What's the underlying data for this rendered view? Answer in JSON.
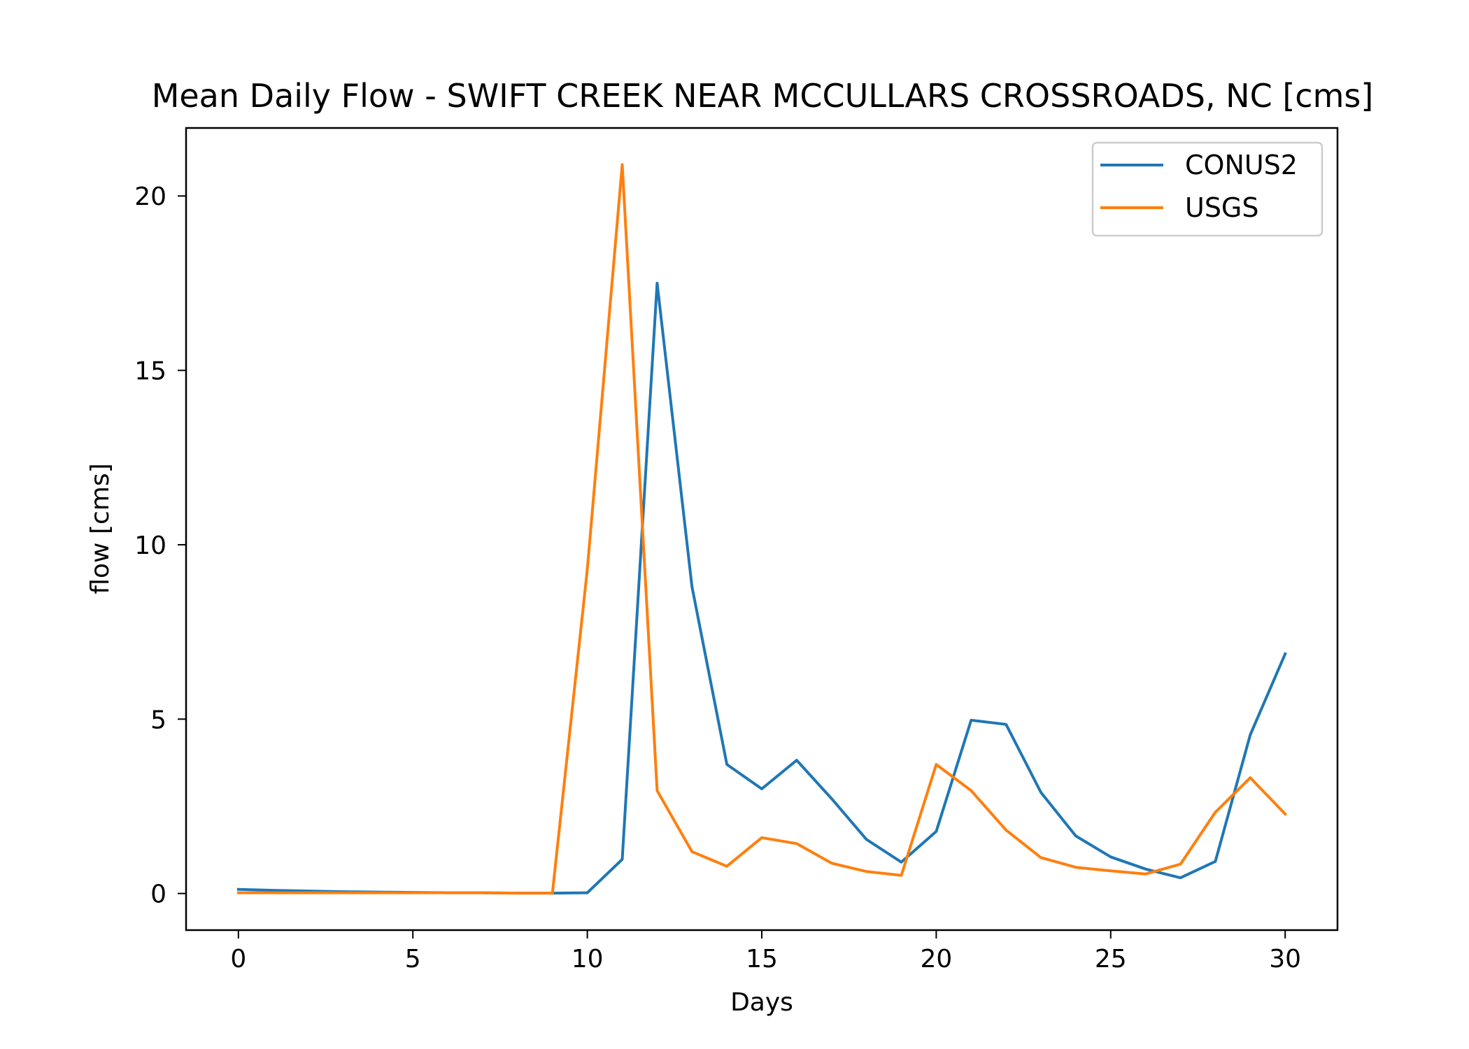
{
  "chart_data": {
    "type": "line",
    "title": "Mean Daily Flow - SWIFT CREEK NEAR MCCULLARS CROSSROADS, NC [cms]",
    "xlabel": "Days",
    "ylabel": "flow [cms]",
    "xlim": [
      -1.5,
      31.5
    ],
    "ylim": [
      -1.05,
      21.95
    ],
    "xticks": [
      0,
      5,
      10,
      15,
      20,
      25,
      30
    ],
    "yticks": [
      0,
      5,
      10,
      15,
      20
    ],
    "grid": false,
    "legend_position": "top-right",
    "x": [
      0,
      1,
      2,
      3,
      4,
      5,
      6,
      7,
      8,
      9,
      10,
      11,
      12,
      13,
      14,
      15,
      16,
      17,
      18,
      19,
      20,
      21,
      22,
      23,
      24,
      25,
      26,
      27,
      28,
      29,
      30
    ],
    "series": [
      {
        "name": "CONUS2",
        "color": "#1f77b4",
        "values": [
          0.12,
          0.09,
          0.07,
          0.05,
          0.04,
          0.03,
          0.02,
          0.02,
          0.01,
          0.01,
          0.02,
          0.98,
          17.5,
          8.8,
          3.7,
          3.0,
          3.82,
          2.72,
          1.55,
          0.9,
          1.78,
          4.97,
          4.85,
          2.9,
          1.65,
          1.05,
          0.7,
          0.45,
          0.92,
          4.55,
          6.87
        ]
      },
      {
        "name": "USGS",
        "color": "#ff7f0e",
        "values": [
          0.02,
          0.02,
          0.02,
          0.02,
          0.02,
          0.02,
          0.02,
          0.02,
          0.01,
          0.01,
          9.3,
          20.9,
          2.95,
          1.2,
          0.78,
          1.6,
          1.43,
          0.87,
          0.63,
          0.52,
          3.7,
          2.95,
          1.82,
          1.03,
          0.75,
          0.65,
          0.56,
          0.84,
          2.33,
          3.32,
          2.28
        ]
      }
    ]
  }
}
